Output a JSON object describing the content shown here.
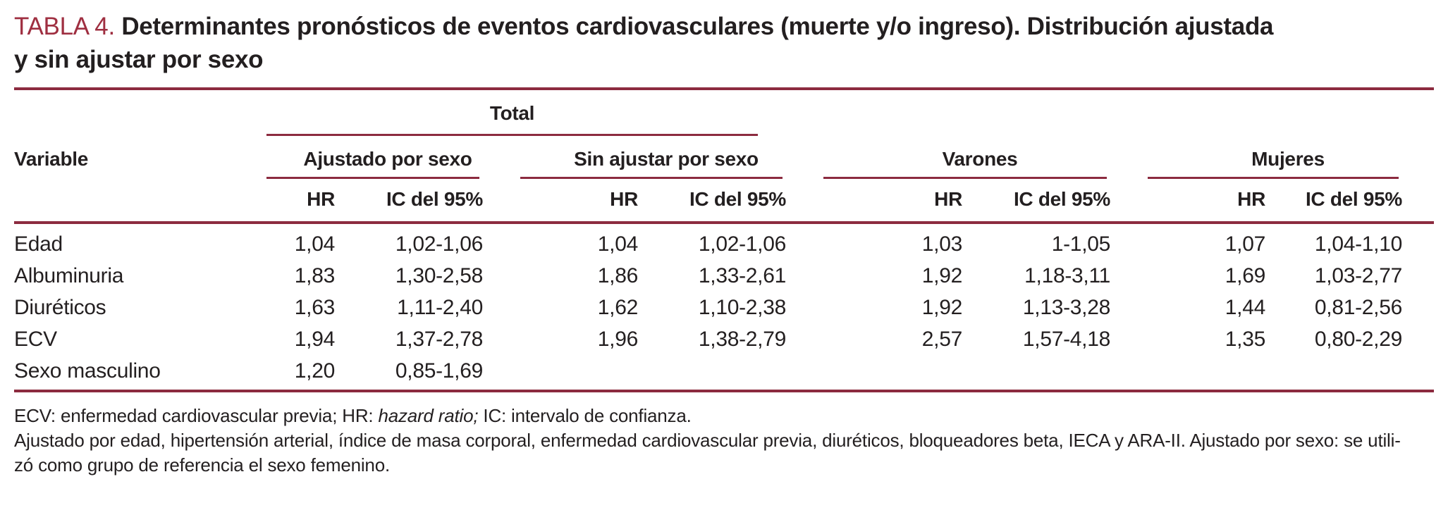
{
  "title": {
    "label": "TABLA 4.",
    "line1": "Determinantes pronósticos de eventos cardiovasculares (muerte y/o ingreso). Distribución ajustada",
    "line2": "y sin ajustar por sexo"
  },
  "table": {
    "variable_label": "Variable",
    "total_label": "Total",
    "groups": [
      {
        "label": "Ajustado por sexo"
      },
      {
        "label": "Sin ajustar por sexo"
      },
      {
        "label": "Varones"
      },
      {
        "label": "Mujeres"
      }
    ],
    "hr_label": "HR",
    "ic_label": "IC del 95%",
    "rows": [
      {
        "variable": "Edad",
        "values": [
          "1,04",
          "1,02-1,06",
          "1,04",
          "1,02-1,06",
          "1,03",
          "1-1,05",
          "1,07",
          "1,04-1,10"
        ]
      },
      {
        "variable": "Albuminuria",
        "values": [
          "1,83",
          "1,30-2,58",
          "1,86",
          "1,33-2,61",
          "1,92",
          "1,18-3,11",
          "1,69",
          "1,03-2,77"
        ]
      },
      {
        "variable": "Diuréticos",
        "values": [
          "1,63",
          "1,11-2,40",
          "1,62",
          "1,10-2,38",
          "1,92",
          "1,13-3,28",
          "1,44",
          "0,81-2,56"
        ]
      },
      {
        "variable": "ECV",
        "values": [
          "1,94",
          "1,37-2,78",
          "1,96",
          "1,38-2,79",
          "2,57",
          "1,57-4,18",
          "1,35",
          "0,80-2,29"
        ]
      },
      {
        "variable": "Sexo masculino",
        "values": [
          "1,20",
          "0,85-1,69",
          "",
          "",
          "",
          "",
          "",
          ""
        ]
      }
    ]
  },
  "footnotes": {
    "line1_pre": "ECV: enfermedad cardiovascular previa; HR: ",
    "line1_italic": "hazard ratio;",
    "line1_post": " IC: intervalo de confianza.",
    "line2": "Ajustado por edad, hipertensión arterial, índice de masa corporal, enfermedad cardiovascular previa, diuréticos, bloqueadores beta, IECA y ARA-II. Ajustado por sexo: se utili-",
    "line3": "zó como grupo de referencia el sexo femenino."
  },
  "colors": {
    "rule": "#8c2b3f",
    "table_number": "#9f2f41",
    "text": "#231f20",
    "background": "#ffffff"
  }
}
